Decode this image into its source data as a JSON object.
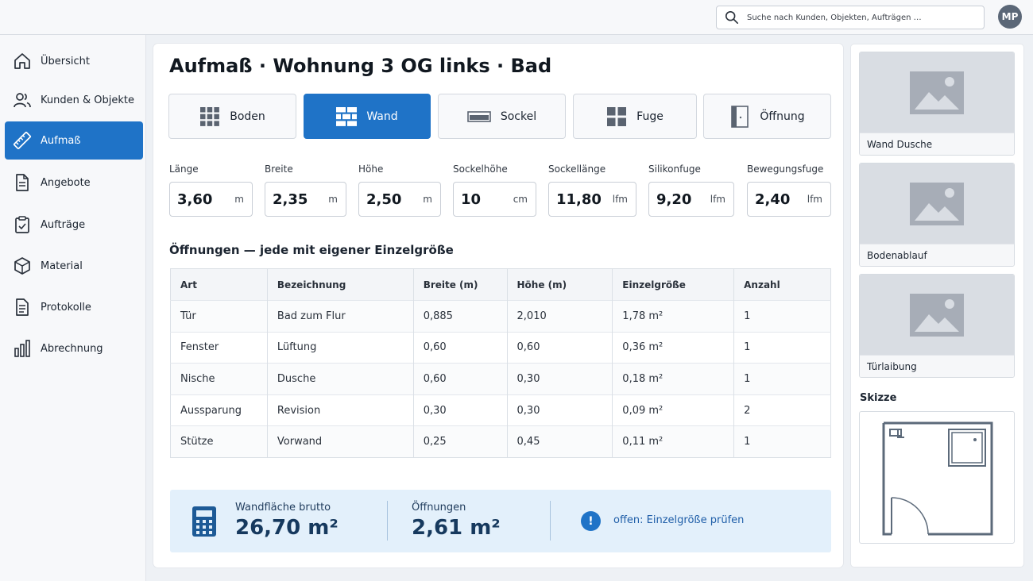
{
  "header": {
    "search_placeholder": "Suche nach Kunden, Objekten, Aufträgen …",
    "avatar_initials": "MP"
  },
  "sidebar": {
    "items": [
      {
        "label": "Übersicht",
        "icon": "home-icon",
        "active": false
      },
      {
        "label": "Kunden & Objekte",
        "icon": "users-icon",
        "active": false
      },
      {
        "label": "Aufmaß",
        "icon": "ruler-icon",
        "active": true
      },
      {
        "label": "Angebote",
        "icon": "document-icon",
        "active": false
      },
      {
        "label": "Aufträge",
        "icon": "clipboard-icon",
        "active": false
      },
      {
        "label": "Material",
        "icon": "box-icon",
        "active": false
      },
      {
        "label": "Protokolle",
        "icon": "file-lines-icon",
        "active": false
      },
      {
        "label": "Abrechnung",
        "icon": "bar-chart-icon",
        "active": false
      }
    ]
  },
  "main": {
    "title": "Aufmaß · Wohnung 3 OG links · Bad",
    "tabs": [
      {
        "label": "Boden",
        "icon": "tiles-grid-icon",
        "active": false
      },
      {
        "label": "Wand",
        "icon": "brick-wall-icon",
        "active": true
      },
      {
        "label": "Sockel",
        "icon": "baseboard-icon",
        "active": false
      },
      {
        "label": "Fuge",
        "icon": "joint-grid-icon",
        "active": false
      },
      {
        "label": "Öffnung",
        "icon": "door-icon",
        "active": false
      }
    ],
    "fields": [
      {
        "label": "Länge",
        "value": "3,60",
        "unit": "m"
      },
      {
        "label": "Breite",
        "value": "2,35",
        "unit": "m"
      },
      {
        "label": "Höhe",
        "value": "2,50",
        "unit": "m"
      },
      {
        "label": "Sockelhöhe",
        "value": "10",
        "unit": "cm"
      },
      {
        "label": "Sockellänge",
        "value": "11,80",
        "unit": "lfm"
      },
      {
        "label": "Silikonfuge",
        "value": "9,20",
        "unit": "lfm"
      },
      {
        "label": "Bewegungsfuge",
        "value": "2,40",
        "unit": "lfm"
      }
    ],
    "openings_title": "Öffnungen — jede mit eigener Einzelgröße",
    "table": {
      "headers": [
        "Art",
        "Bezeichnung",
        "Breite (m)",
        "Höhe (m)",
        "Einzelgröße",
        "Anzahl"
      ],
      "rows": [
        [
          "Tür",
          "Bad zum Flur",
          "0,885",
          "2,010",
          "1,78 m²",
          "1"
        ],
        [
          "Fenster",
          "Lüftung",
          "0,60",
          "0,60",
          "0,36 m²",
          "1"
        ],
        [
          "Nische",
          "Dusche",
          "0,60",
          "0,30",
          "0,18 m²",
          "1"
        ],
        [
          "Aussparung",
          "Revision",
          "0,30",
          "0,30",
          "0,09 m²",
          "2"
        ],
        [
          "Stütze",
          "Vorwand",
          "0,25",
          "0,45",
          "0,11 m²",
          "1"
        ]
      ]
    },
    "summary": {
      "gross_label": "Wandfläche brutto",
      "gross_value": "26,70 m²",
      "openings_label": "Öffnungen",
      "openings_value": "2,61 m²",
      "notice": "offen: Einzelgröße prüfen"
    }
  },
  "right_panel": {
    "photos": [
      {
        "caption": "Wand Dusche"
      },
      {
        "caption": "Bodenablauf"
      },
      {
        "caption": "Türlaibung"
      }
    ],
    "sketch_title": "Skizze"
  },
  "colors": {
    "accent": "#1f73c7",
    "summary_bg": "#e3f0fb",
    "value_text": "#16395e"
  }
}
